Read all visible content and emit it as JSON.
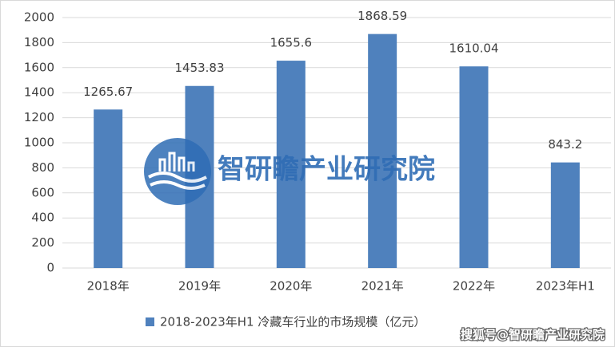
{
  "chart_data": {
    "type": "bar",
    "categories": [
      "2018年",
      "2019年",
      "2020年",
      "2021年",
      "2022年",
      "2023年H1"
    ],
    "series": [
      {
        "name": "2018-2023年H1 冷藏车行业的市场规模（亿元）",
        "color": "#4f81bd",
        "values": [
          1265.67,
          1453.83,
          1655.6,
          1868.59,
          1610.04,
          843.2
        ]
      }
    ],
    "ylim": [
      0,
      2000
    ],
    "yticks": [
      0,
      200,
      400,
      600,
      800,
      1000,
      1200,
      1400,
      1600,
      1800,
      2000
    ],
    "grid": true,
    "legend": "bottom",
    "watermark": "智研瞻产业研究院",
    "source_watermark": "搜狐号@智研瞻产业研究院"
  }
}
